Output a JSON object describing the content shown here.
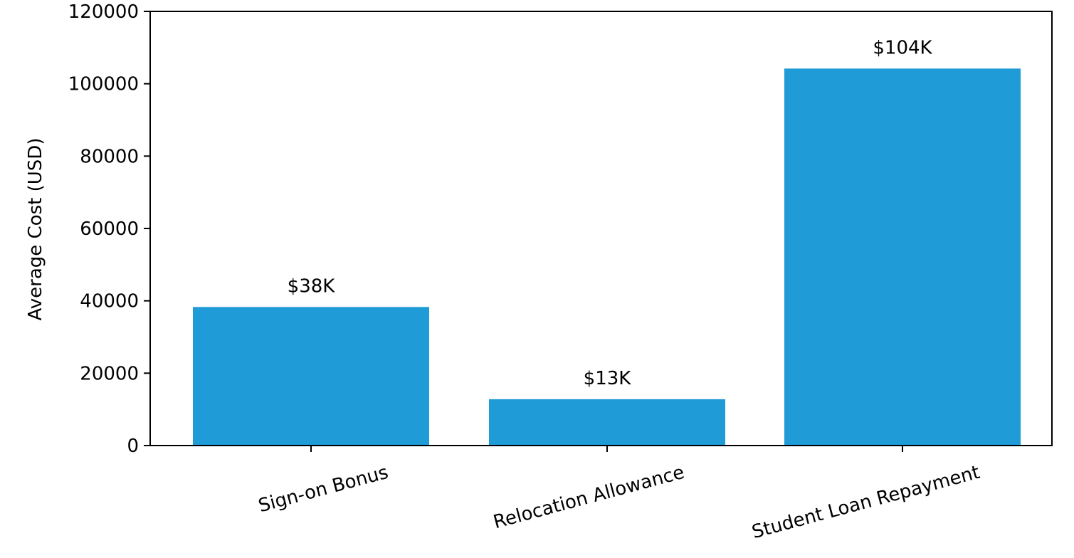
{
  "chart_data": {
    "type": "bar",
    "categories": [
      "Sign-on Bonus",
      "Relocation Allowance",
      "Student Loan Repayment"
    ],
    "values": [
      38300,
      12800,
      104200
    ],
    "value_labels": [
      "$38K",
      "$13K",
      "$104K"
    ],
    "ylabel": "Average Cost (USD)",
    "ylim": [
      0,
      120000
    ],
    "yticks": [
      0,
      20000,
      40000,
      60000,
      80000,
      100000,
      120000
    ],
    "bar_color": "#1f9bd7",
    "grid": false,
    "legend": "none"
  }
}
